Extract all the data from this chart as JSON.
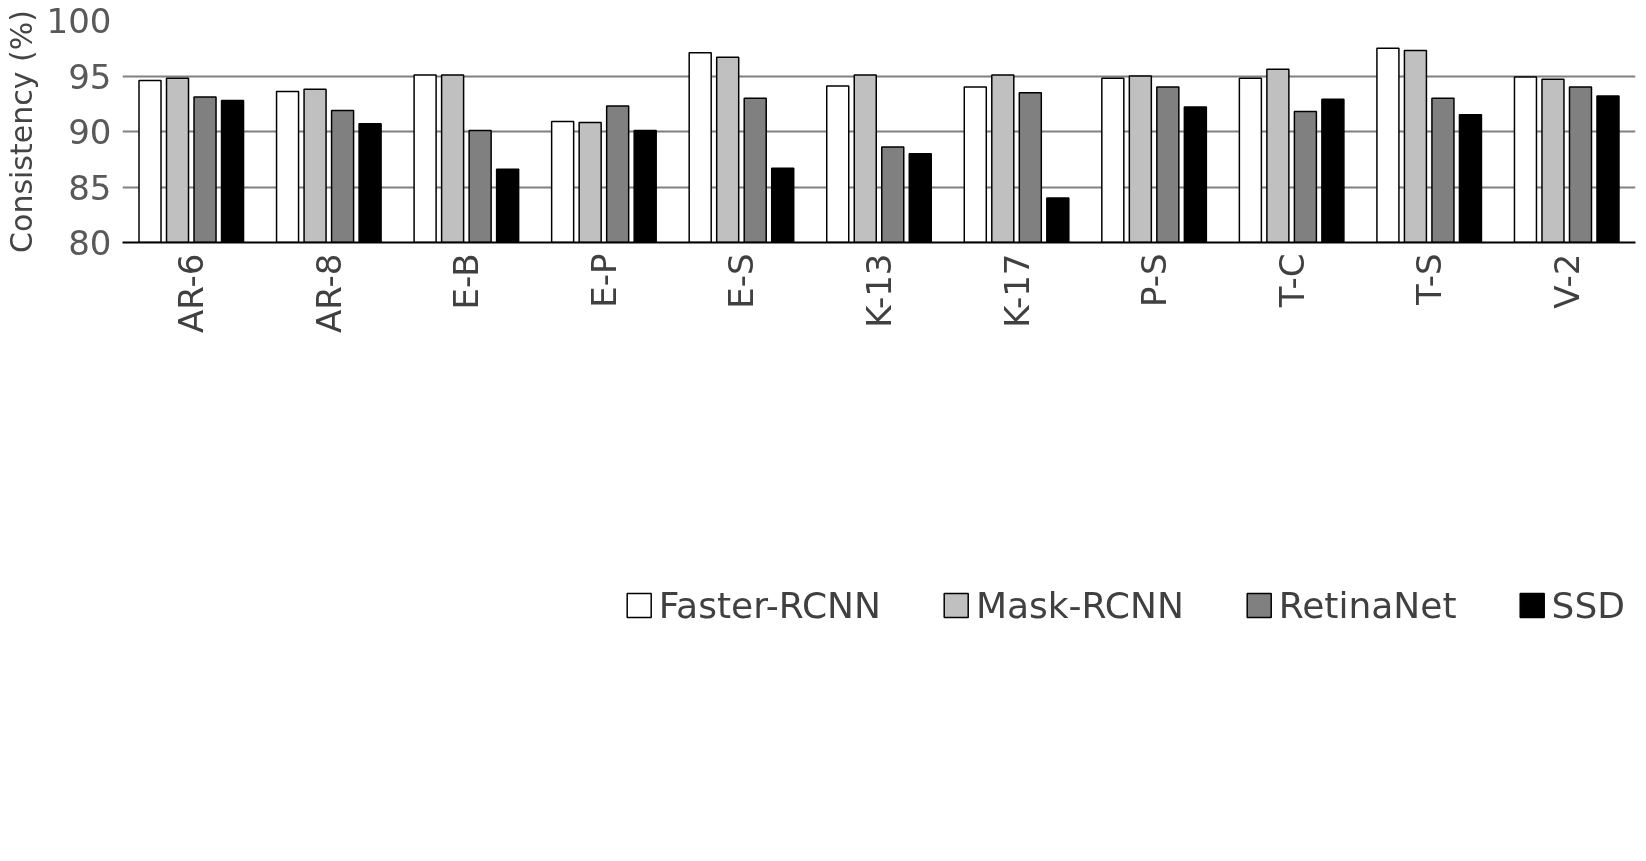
{
  "chart_data": {
    "type": "bar",
    "ylabel": "Consistency (%)",
    "categories": [
      "AR-6",
      "AR-8",
      "E-B",
      "E-P",
      "E-S",
      "K-13",
      "K-17",
      "P-S",
      "T-C",
      "T-S",
      "V-2"
    ],
    "series": [
      {
        "name": "Faster-RCNN",
        "color": "#ffffff",
        "values": [
          94.6,
          93.6,
          95.1,
          90.9,
          97.1,
          94.1,
          94.0,
          94.8,
          94.8,
          97.5,
          94.9
        ]
      },
      {
        "name": "Mask-RCNN",
        "color": "#c0c0c0",
        "values": [
          94.8,
          93.8,
          95.1,
          90.8,
          96.7,
          95.1,
          95.1,
          95.0,
          95.6,
          97.3,
          94.7
        ]
      },
      {
        "name": "RetinaNet",
        "color": "#808080",
        "values": [
          93.1,
          91.9,
          90.1,
          92.3,
          93.0,
          88.6,
          93.5,
          94.0,
          91.8,
          93.0,
          94.0
        ]
      },
      {
        "name": "SSD",
        "color": "#000000",
        "values": [
          92.8,
          90.7,
          86.6,
          90.1,
          86.7,
          88.0,
          84.0,
          92.2,
          92.9,
          91.5,
          93.2
        ]
      }
    ],
    "ylim": [
      80,
      100
    ],
    "yticks": [
      80,
      85,
      90,
      95,
      100
    ],
    "grid": "y",
    "legend": "bottom"
  }
}
